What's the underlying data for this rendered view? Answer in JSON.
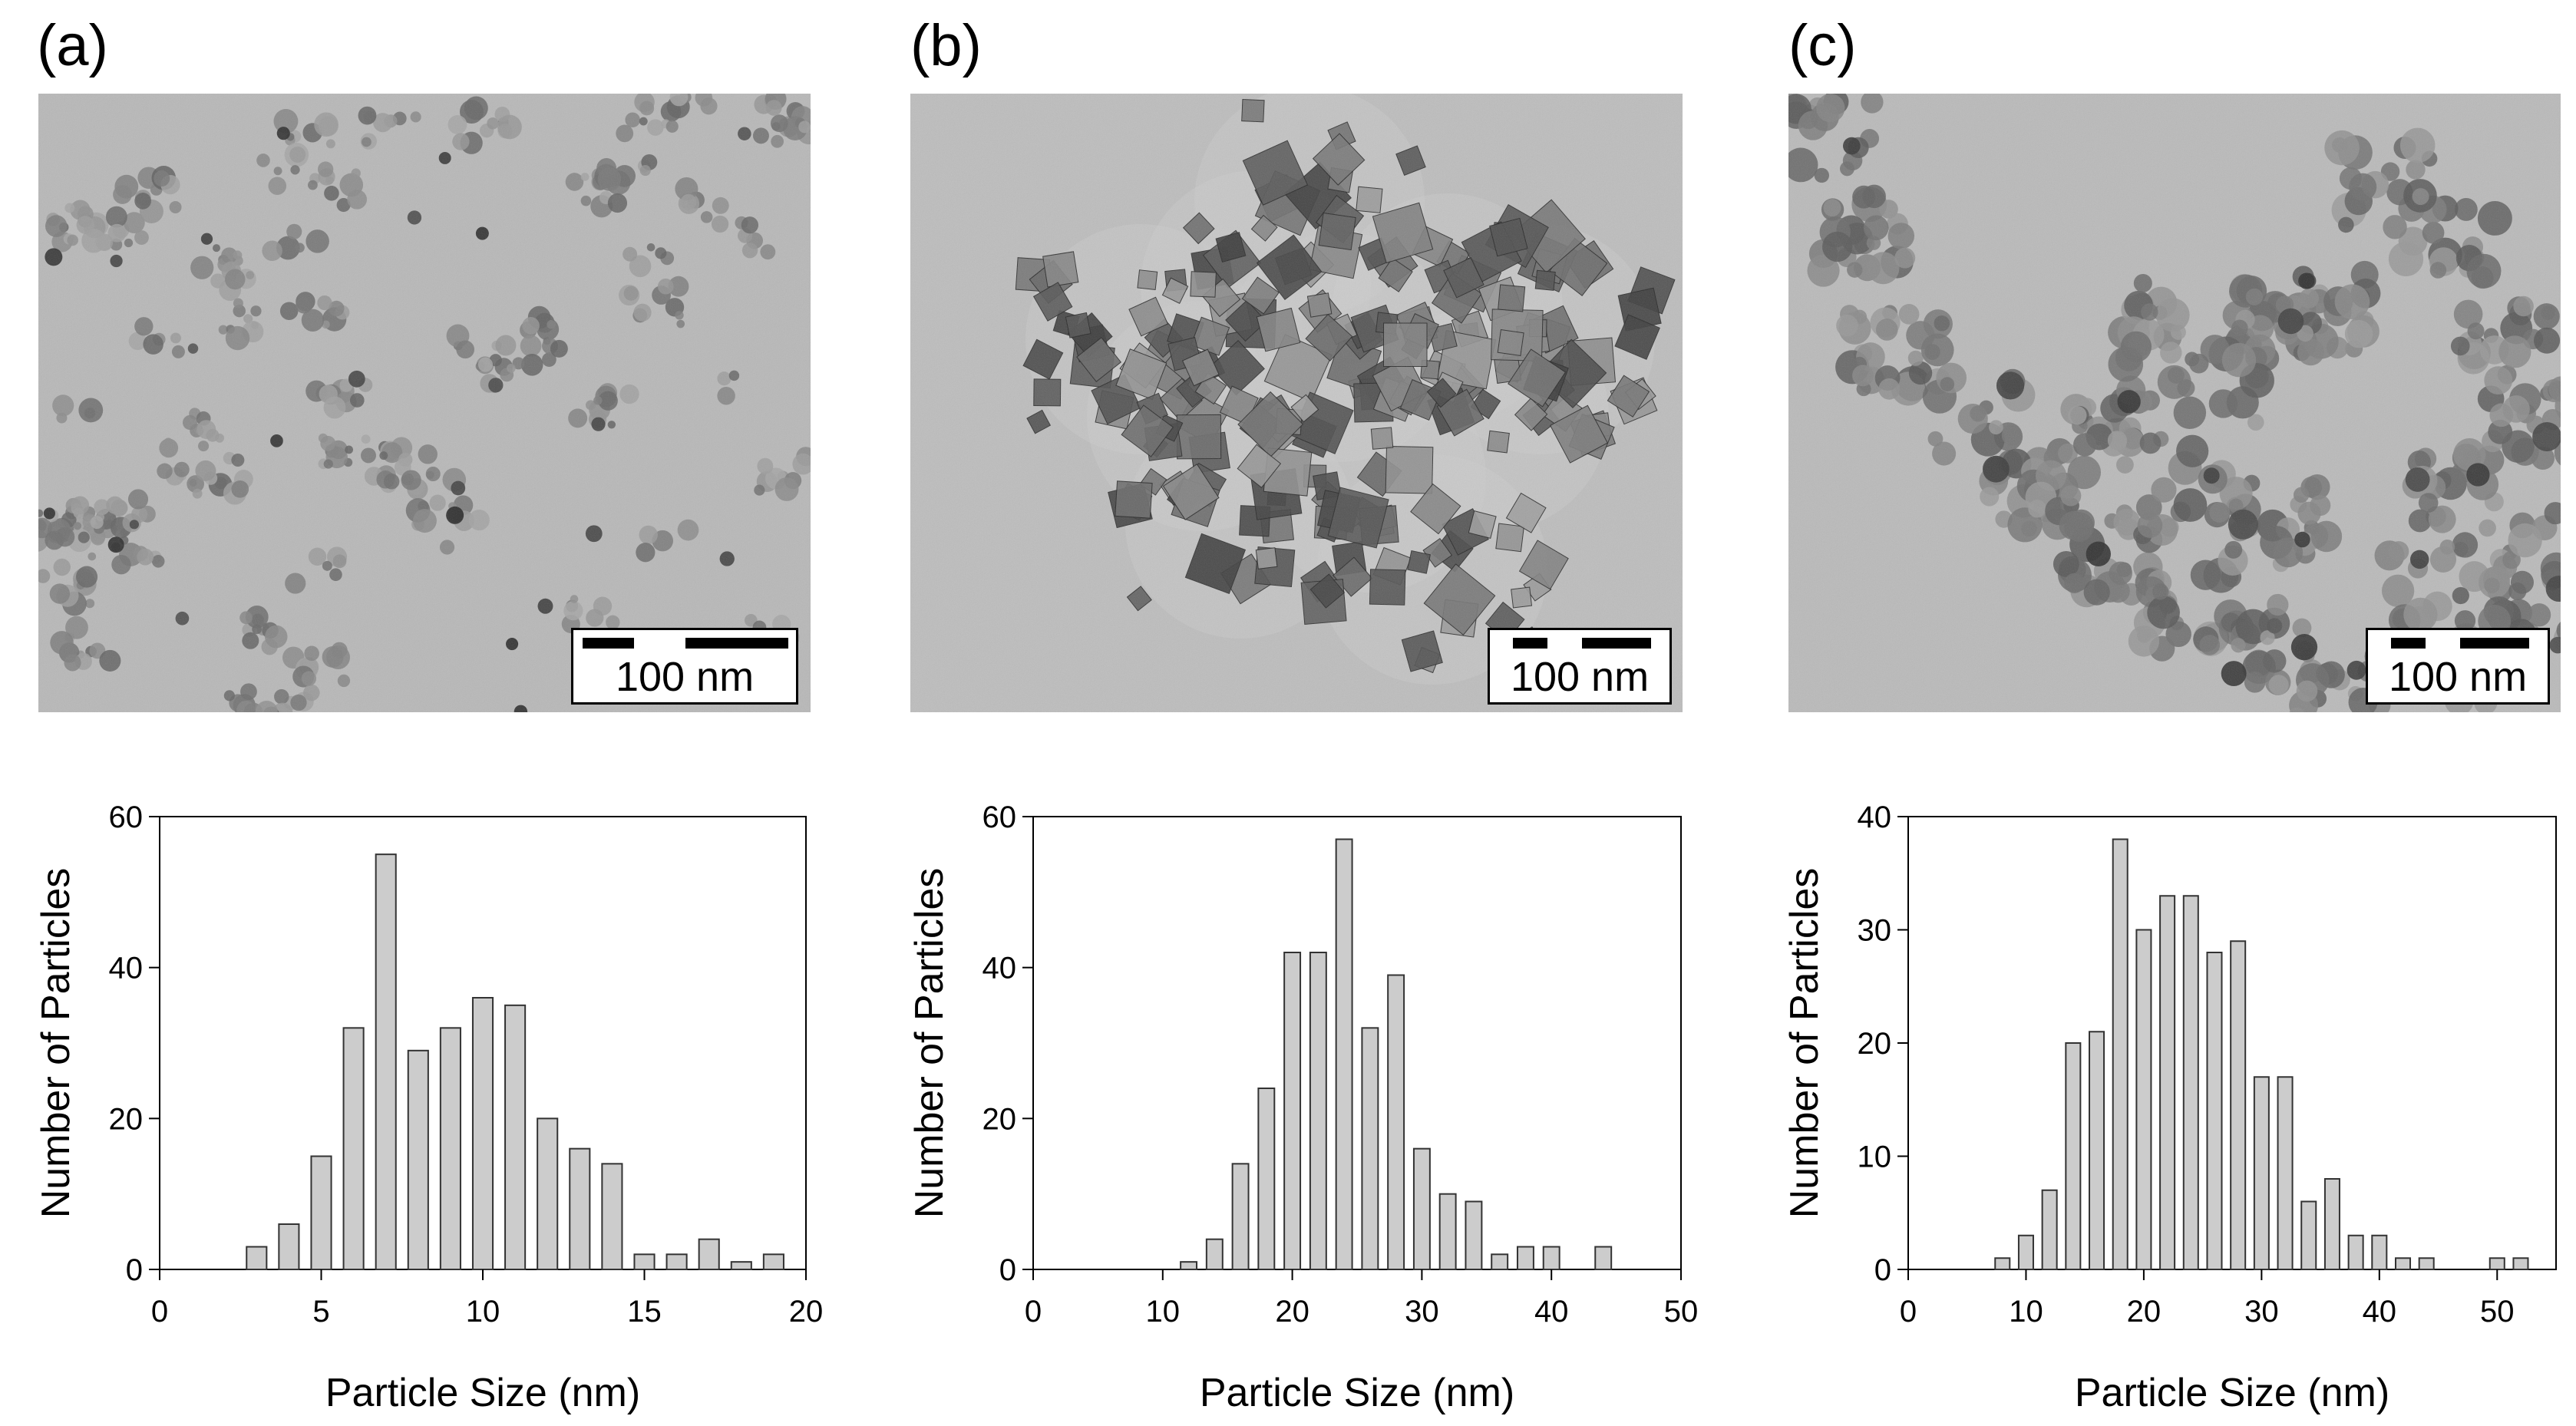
{
  "panels": [
    {
      "label": "(a)",
      "scale_text": "100 nm"
    },
    {
      "label": "(b)",
      "scale_text": "100 nm"
    },
    {
      "label": "(c)",
      "scale_text": "100 nm"
    }
  ],
  "colors": {
    "bar_fill": "#cccccc",
    "bar_stroke": "#333333",
    "axis": "#000000"
  },
  "chart_data": [
    {
      "type": "bar",
      "xlabel": "Particle Size (nm)",
      "ylabel": "Number of Particles",
      "xlim": [
        0,
        20
      ],
      "ylim": [
        0,
        60
      ],
      "xticks": [
        0,
        5,
        10,
        15,
        20
      ],
      "yticks": [
        0,
        20,
        40,
        60
      ],
      "x": [
        3,
        4,
        5,
        6,
        7,
        8,
        9,
        10,
        11,
        12,
        13,
        14,
        15,
        16,
        17,
        18,
        19
      ],
      "values": [
        3,
        6,
        15,
        32,
        55,
        29,
        32,
        36,
        35,
        20,
        16,
        14,
        2,
        2,
        4,
        1,
        2
      ],
      "grid": false
    },
    {
      "type": "bar",
      "xlabel": "Particle Size (nm)",
      "ylabel": "Number of Particles",
      "xlim": [
        0,
        50
      ],
      "ylim": [
        0,
        60
      ],
      "xticks": [
        0,
        10,
        20,
        30,
        40,
        50
      ],
      "yticks": [
        0,
        20,
        40,
        60
      ],
      "x": [
        12,
        14,
        16,
        18,
        20,
        22,
        24,
        26,
        28,
        30,
        32,
        34,
        36,
        38,
        40,
        42,
        44
      ],
      "values": [
        1,
        4,
        14,
        24,
        42,
        42,
        57,
        32,
        39,
        16,
        10,
        9,
        2,
        3,
        3,
        0,
        3
      ],
      "grid": false
    },
    {
      "type": "bar",
      "xlabel": "Particle Size (nm)",
      "ylabel": "Number of Particles",
      "xlim": [
        0,
        55
      ],
      "ylim": [
        0,
        40
      ],
      "xticks": [
        0,
        10,
        20,
        30,
        40,
        50
      ],
      "yticks": [
        0,
        10,
        20,
        30,
        40
      ],
      "x": [
        8,
        10,
        12,
        14,
        16,
        18,
        20,
        22,
        24,
        26,
        28,
        30,
        32,
        34,
        36,
        38,
        40,
        42,
        44,
        46,
        48,
        50,
        52
      ],
      "values": [
        1,
        3,
        7,
        20,
        21,
        38,
        30,
        33,
        33,
        28,
        29,
        17,
        17,
        6,
        8,
        3,
        3,
        1,
        1,
        0,
        0,
        1,
        1
      ],
      "grid": false
    }
  ]
}
